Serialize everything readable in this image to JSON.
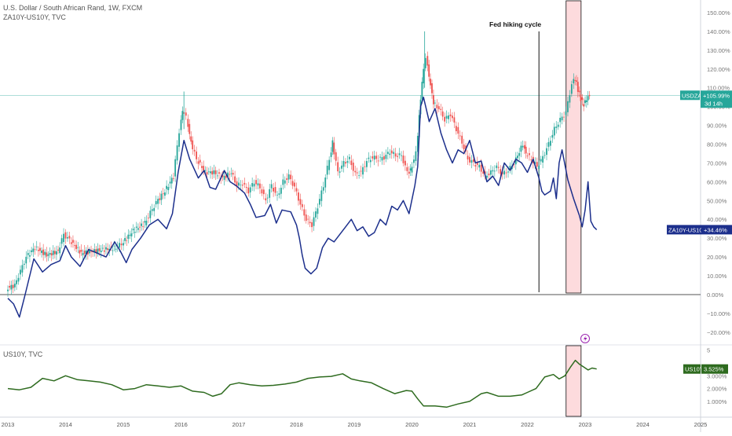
{
  "chart_data": [
    {
      "type": "line",
      "title": "U.S. Dollar / South African Rand, 1W, FXCM",
      "subtitle": "ZA10Y-US10Y, TVC",
      "x_ticks": [
        "2013",
        "2014",
        "2015",
        "2016",
        "2017",
        "2018",
        "2019",
        "2020",
        "2021",
        "2022",
        "2023",
        "2024",
        "2025"
      ],
      "y_ticks": [
        "150.00%",
        "140.00%",
        "130.00%",
        "120.00%",
        "110.00%",
        "100.00%",
        "90.00%",
        "80.00%",
        "70.00%",
        "60.00%",
        "50.00%",
        "40.00%",
        "30.00%",
        "20.00%",
        "10.00%",
        "0.00%",
        "−10.00%",
        "−20.00%"
      ],
      "ylim": [
        -23,
        155
      ],
      "annotation": "Fed hiking cycle",
      "annotation_date": 2022.2,
      "highlight_range": [
        2022.67,
        2022.93
      ],
      "series": [
        {
          "name": "USDZAR",
          "label": "USDZAR",
          "value_label": "+105.99%",
          "countdown": "3d 14h",
          "color": "#26a69a",
          "points": [
            [
              2013.0,
              3
            ],
            [
              2013.15,
              5
            ],
            [
              2013.35,
              20
            ],
            [
              2013.5,
              25
            ],
            [
              2013.7,
              21
            ],
            [
              2013.9,
              23
            ],
            [
              2014.0,
              32
            ],
            [
              2014.1,
              29
            ],
            [
              2014.3,
              22
            ],
            [
              2014.5,
              23
            ],
            [
              2014.7,
              24
            ],
            [
              2014.9,
              25
            ],
            [
              2015.0,
              27
            ],
            [
              2015.2,
              34
            ],
            [
              2015.4,
              38
            ],
            [
              2015.6,
              49
            ],
            [
              2015.75,
              55
            ],
            [
              2015.9,
              63
            ],
            [
              2016.0,
              87
            ],
            [
              2016.05,
              98
            ],
            [
              2016.12,
              94
            ],
            [
              2016.2,
              81
            ],
            [
              2016.3,
              72
            ],
            [
              2016.45,
              65
            ],
            [
              2016.6,
              65
            ],
            [
              2016.75,
              62
            ],
            [
              2016.9,
              65
            ],
            [
              2017.0,
              58
            ],
            [
              2017.1,
              59
            ],
            [
              2017.2,
              55
            ],
            [
              2017.3,
              60
            ],
            [
              2017.4,
              57
            ],
            [
              2017.5,
              50
            ],
            [
              2017.6,
              58
            ],
            [
              2017.7,
              52
            ],
            [
              2017.8,
              60
            ],
            [
              2017.9,
              63
            ],
            [
              2018.0,
              57
            ],
            [
              2018.1,
              48
            ],
            [
              2018.2,
              40
            ],
            [
              2018.3,
              37
            ],
            [
              2018.4,
              47
            ],
            [
              2018.5,
              58
            ],
            [
              2018.6,
              72
            ],
            [
              2018.65,
              81
            ],
            [
              2018.75,
              65
            ],
            [
              2018.85,
              70
            ],
            [
              2018.95,
              72
            ],
            [
              2019.05,
              64
            ],
            [
              2019.15,
              65
            ],
            [
              2019.25,
              71
            ],
            [
              2019.35,
              73
            ],
            [
              2019.45,
              72
            ],
            [
              2019.55,
              73
            ],
            [
              2019.65,
              76
            ],
            [
              2019.75,
              74
            ],
            [
              2019.85,
              74
            ],
            [
              2019.95,
              65
            ],
            [
              2020.0,
              66
            ],
            [
              2020.1,
              75
            ],
            [
              2020.15,
              95
            ],
            [
              2020.2,
              113
            ],
            [
              2020.27,
              127
            ],
            [
              2020.32,
              116
            ],
            [
              2020.4,
              102
            ],
            [
              2020.5,
              99
            ],
            [
              2020.6,
              93
            ],
            [
              2020.7,
              96
            ],
            [
              2020.8,
              88
            ],
            [
              2020.9,
              81
            ],
            [
              2021.0,
              72
            ],
            [
              2021.1,
              70
            ],
            [
              2021.2,
              68
            ],
            [
              2021.3,
              63
            ],
            [
              2021.4,
              65
            ],
            [
              2021.5,
              68
            ],
            [
              2021.6,
              64
            ],
            [
              2021.7,
              66
            ],
            [
              2021.8,
              70
            ],
            [
              2021.95,
              80
            ],
            [
              2022.0,
              75
            ],
            [
              2022.1,
              72
            ],
            [
              2022.2,
              68
            ],
            [
              2022.3,
              73
            ],
            [
              2022.4,
              80
            ],
            [
              2022.5,
              88
            ],
            [
              2022.6,
              93
            ],
            [
              2022.7,
              97
            ],
            [
              2022.8,
              112
            ],
            [
              2022.85,
              115
            ],
            [
              2022.9,
              109
            ],
            [
              2022.95,
              104
            ],
            [
              2023.0,
              101
            ],
            [
              2023.05,
              104
            ],
            [
              2023.1,
              106
            ]
          ]
        },
        {
          "name": "ZA10Y-US10Y",
          "label": "ZA10Y-US10Y",
          "value_label": "+34.46%",
          "color": "#1c2f8c",
          "points": [
            [
              2013.0,
              -2
            ],
            [
              2013.1,
              -5
            ],
            [
              2013.2,
              -12
            ],
            [
              2013.3,
              0
            ],
            [
              2013.45,
              19
            ],
            [
              2013.6,
              12
            ],
            [
              2013.75,
              16
            ],
            [
              2013.9,
              18
            ],
            [
              2014.0,
              26
            ],
            [
              2014.1,
              20
            ],
            [
              2014.25,
              15
            ],
            [
              2014.4,
              24
            ],
            [
              2014.55,
              22
            ],
            [
              2014.7,
              20
            ],
            [
              2014.85,
              28
            ],
            [
              2014.95,
              23
            ],
            [
              2015.05,
              17
            ],
            [
              2015.15,
              24
            ],
            [
              2015.3,
              30
            ],
            [
              2015.45,
              37
            ],
            [
              2015.6,
              40
            ],
            [
              2015.75,
              35
            ],
            [
              2015.85,
              43
            ],
            [
              2015.95,
              65
            ],
            [
              2016.05,
              82
            ],
            [
              2016.15,
              72
            ],
            [
              2016.3,
              62
            ],
            [
              2016.4,
              66
            ],
            [
              2016.5,
              57
            ],
            [
              2016.6,
              56
            ],
            [
              2016.75,
              66
            ],
            [
              2016.85,
              60
            ],
            [
              2016.95,
              58
            ],
            [
              2017.1,
              54
            ],
            [
              2017.2,
              48
            ],
            [
              2017.3,
              41
            ],
            [
              2017.45,
              42
            ],
            [
              2017.55,
              48
            ],
            [
              2017.65,
              38
            ],
            [
              2017.75,
              45
            ],
            [
              2017.9,
              44
            ],
            [
              2018.0,
              37
            ],
            [
              2018.05,
              30
            ],
            [
              2018.1,
              21
            ],
            [
              2018.15,
              14
            ],
            [
              2018.25,
              11
            ],
            [
              2018.35,
              14
            ],
            [
              2018.45,
              25
            ],
            [
              2018.55,
              30
            ],
            [
              2018.65,
              28
            ],
            [
              2018.75,
              32
            ],
            [
              2018.85,
              36
            ],
            [
              2018.95,
              40
            ],
            [
              2019.05,
              34
            ],
            [
              2019.15,
              36
            ],
            [
              2019.25,
              31
            ],
            [
              2019.35,
              33
            ],
            [
              2019.45,
              40
            ],
            [
              2019.55,
              37
            ],
            [
              2019.65,
              47
            ],
            [
              2019.75,
              45
            ],
            [
              2019.85,
              50
            ],
            [
              2019.95,
              43
            ],
            [
              2020.05,
              58
            ],
            [
              2020.1,
              68
            ],
            [
              2020.15,
              100
            ],
            [
              2020.2,
              105
            ],
            [
              2020.3,
              92
            ],
            [
              2020.4,
              99
            ],
            [
              2020.5,
              86
            ],
            [
              2020.6,
              77
            ],
            [
              2020.7,
              70
            ],
            [
              2020.8,
              77
            ],
            [
              2020.9,
              75
            ],
            [
              2021.0,
              82
            ],
            [
              2021.1,
              70
            ],
            [
              2021.2,
              71
            ],
            [
              2021.3,
              60
            ],
            [
              2021.4,
              63
            ],
            [
              2021.5,
              58
            ],
            [
              2021.6,
              70
            ],
            [
              2021.7,
              66
            ],
            [
              2021.8,
              72
            ],
            [
              2021.9,
              70
            ],
            [
              2022.0,
              65
            ],
            [
              2022.1,
              72
            ],
            [
              2022.2,
              62
            ],
            [
              2022.25,
              55
            ],
            [
              2022.3,
              53
            ],
            [
              2022.4,
              55
            ],
            [
              2022.45,
              62
            ],
            [
              2022.5,
              51
            ],
            [
              2022.55,
              70
            ],
            [
              2022.6,
              77
            ],
            [
              2022.7,
              61
            ],
            [
              2022.8,
              51
            ],
            [
              2022.9,
              42
            ],
            [
              2022.95,
              36
            ],
            [
              2023.0,
              45
            ],
            [
              2023.05,
              60
            ],
            [
              2023.1,
              39
            ],
            [
              2023.15,
              36
            ],
            [
              2023.2,
              34.5
            ]
          ]
        }
      ]
    },
    {
      "type": "line",
      "title": "US10Y, TVC",
      "y_ticks": [
        "5",
        "3.000%",
        "2.000%",
        "1.000%"
      ],
      "ylim": [
        0.2,
        5.1
      ],
      "series": [
        {
          "name": "US10Y",
          "label": "US10Y",
          "value_label": "3.525%",
          "color": "#2e6b1f",
          "points": [
            [
              2013.0,
              2.0
            ],
            [
              2013.2,
              1.9
            ],
            [
              2013.4,
              2.1
            ],
            [
              2013.6,
              2.8
            ],
            [
              2013.8,
              2.6
            ],
            [
              2014.0,
              3.0
            ],
            [
              2014.2,
              2.7
            ],
            [
              2014.4,
              2.6
            ],
            [
              2014.6,
              2.5
            ],
            [
              2014.8,
              2.3
            ],
            [
              2015.0,
              1.9
            ],
            [
              2015.2,
              2.0
            ],
            [
              2015.4,
              2.3
            ],
            [
              2015.6,
              2.2
            ],
            [
              2015.8,
              2.1
            ],
            [
              2016.0,
              2.2
            ],
            [
              2016.2,
              1.8
            ],
            [
              2016.4,
              1.7
            ],
            [
              2016.55,
              1.4
            ],
            [
              2016.7,
              1.6
            ],
            [
              2016.85,
              2.3
            ],
            [
              2017.0,
              2.45
            ],
            [
              2017.2,
              2.3
            ],
            [
              2017.4,
              2.2
            ],
            [
              2017.6,
              2.25
            ],
            [
              2017.8,
              2.35
            ],
            [
              2018.0,
              2.5
            ],
            [
              2018.2,
              2.8
            ],
            [
              2018.4,
              2.9
            ],
            [
              2018.6,
              2.95
            ],
            [
              2018.8,
              3.15
            ],
            [
              2018.95,
              2.75
            ],
            [
              2019.1,
              2.6
            ],
            [
              2019.3,
              2.45
            ],
            [
              2019.5,
              2.0
            ],
            [
              2019.7,
              1.6
            ],
            [
              2019.9,
              1.85
            ],
            [
              2020.0,
              1.8
            ],
            [
              2020.1,
              1.2
            ],
            [
              2020.2,
              0.65
            ],
            [
              2020.4,
              0.65
            ],
            [
              2020.6,
              0.55
            ],
            [
              2020.8,
              0.8
            ],
            [
              2021.0,
              1.0
            ],
            [
              2021.2,
              1.6
            ],
            [
              2021.3,
              1.7
            ],
            [
              2021.5,
              1.4
            ],
            [
              2021.7,
              1.4
            ],
            [
              2021.9,
              1.5
            ],
            [
              2022.0,
              1.7
            ],
            [
              2022.15,
              2.0
            ],
            [
              2022.3,
              2.9
            ],
            [
              2022.45,
              3.1
            ],
            [
              2022.55,
              2.75
            ],
            [
              2022.65,
              3.0
            ],
            [
              2022.75,
              3.7
            ],
            [
              2022.83,
              4.2
            ],
            [
              2022.9,
              3.9
            ],
            [
              2022.97,
              3.7
            ],
            [
              2023.05,
              3.45
            ],
            [
              2023.12,
              3.6
            ],
            [
              2023.2,
              3.525
            ]
          ]
        }
      ]
    }
  ]
}
